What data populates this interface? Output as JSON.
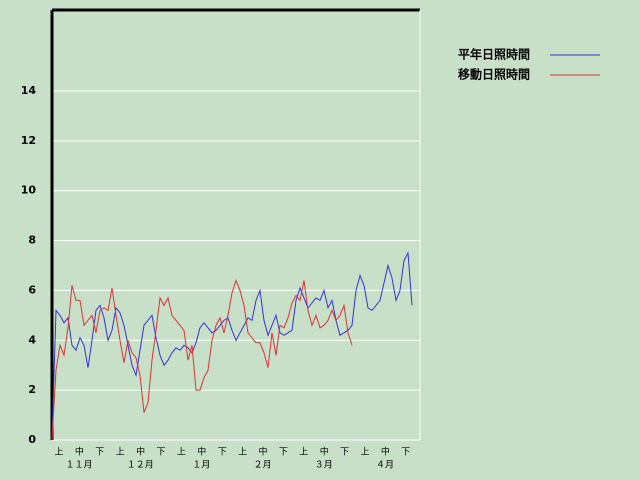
{
  "chart_data": {
    "type": "line",
    "ylim": [
      0,
      17.25
    ],
    "yticks": [
      0,
      2,
      4,
      6,
      8,
      10,
      12,
      14
    ],
    "grid": true,
    "x_labels": [
      "上",
      "中",
      "下",
      "上",
      "中",
      "下",
      "上",
      "中",
      "下",
      "上",
      "中",
      "下",
      "上",
      "中",
      "下",
      "上",
      "中",
      "下"
    ],
    "month_labels": [
      "１１月",
      "１２月",
      "１月",
      "２月",
      "３月",
      "４月"
    ],
    "legend": "top-right",
    "series": [
      {
        "name": "平年日照時間",
        "color": "#3333dd",
        "values": [
          0,
          5.2,
          5.0,
          4.7,
          4.9,
          3.8,
          3.6,
          4.1,
          3.8,
          2.9,
          4.0,
          5.2,
          5.4,
          4.9,
          4.0,
          4.4,
          5.3,
          5.1,
          4.6,
          3.8,
          3.0,
          2.6,
          3.6,
          4.6,
          4.8,
          5.0,
          4.1,
          3.4,
          3.0,
          3.2,
          3.5,
          3.7,
          3.6,
          3.8,
          3.7,
          3.5,
          3.9,
          4.5,
          4.7,
          4.5,
          4.3,
          4.4,
          4.6,
          4.8,
          4.9,
          4.4,
          4.0,
          4.3,
          4.6,
          4.9,
          4.8,
          5.6,
          6.0,
          4.8,
          4.2,
          4.6,
          5.0,
          4.3,
          4.2,
          4.3,
          4.4,
          5.6,
          6.1,
          5.7,
          5.3,
          5.5,
          5.7,
          5.6,
          6.0,
          5.3,
          5.6,
          4.8,
          4.2,
          4.3,
          4.4,
          4.6,
          6.0,
          6.6,
          6.2,
          5.3,
          5.2,
          5.4,
          5.6,
          6.3,
          7.0,
          6.5,
          5.6,
          6.0,
          7.2,
          7.5,
          5.4
        ]
      },
      {
        "name": "移動日照時間",
        "color": "#dd3333",
        "values": [
          0,
          2.8,
          3.8,
          3.4,
          4.5,
          6.2,
          5.6,
          5.6,
          4.6,
          4.8,
          5.0,
          4.3,
          5.2,
          5.3,
          5.2,
          6.1,
          5.0,
          4.0,
          3.1,
          4.0,
          3.5,
          3.3,
          2.6,
          1.1,
          1.5,
          3.2,
          4.4,
          5.7,
          5.4,
          5.7,
          5.0,
          4.8,
          4.6,
          4.4,
          3.2,
          3.8,
          2.0,
          2.0,
          2.5,
          2.8,
          4.0,
          4.6,
          4.9,
          4.3,
          5.0,
          5.9,
          6.4,
          6.0,
          5.4,
          4.3,
          4.1,
          3.9,
          3.9,
          3.5,
          2.9,
          4.3,
          3.4,
          4.6,
          4.5,
          4.9,
          5.5,
          5.8,
          5.6,
          6.4,
          5.2,
          4.6,
          5.0,
          4.5,
          4.6,
          4.8,
          5.2,
          4.8,
          5.0,
          5.4,
          4.3,
          3.8
        ]
      }
    ]
  }
}
